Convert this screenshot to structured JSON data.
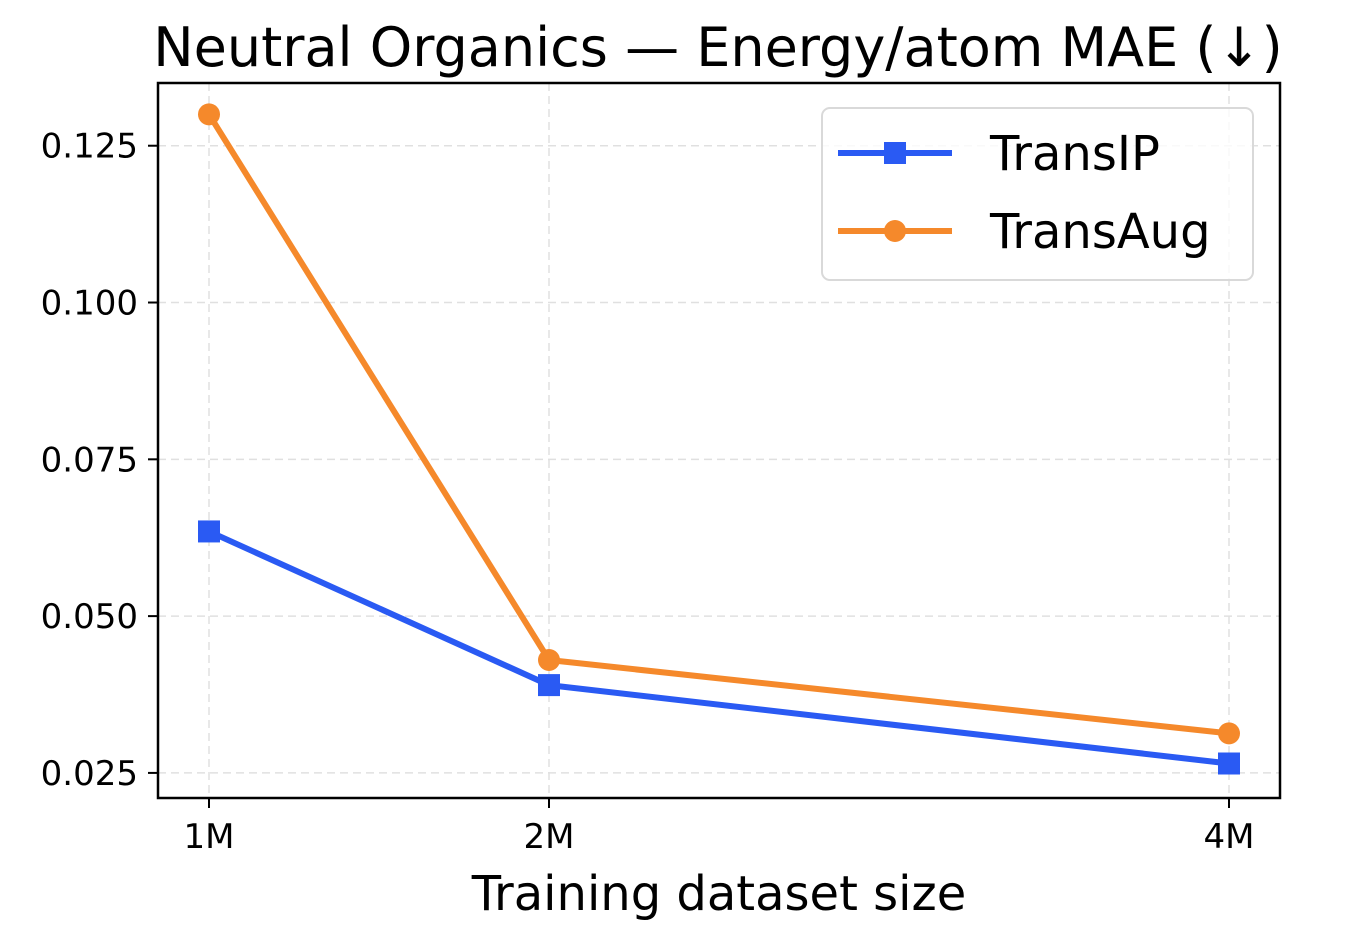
{
  "chart_data": {
    "type": "line",
    "title": "Neutral Organics — Energy/atom MAE (↓)",
    "xlabel": "Training dataset size",
    "ylabel": "",
    "categories": [
      "1M",
      "2M",
      "4M"
    ],
    "x": [
      1,
      2,
      4
    ],
    "ylim": [
      0.021,
      0.135
    ],
    "yticks": [
      0.025,
      0.05,
      0.075,
      0.1,
      0.125
    ],
    "ytick_labels": [
      "0.025",
      "0.050",
      "0.075",
      "0.100",
      "0.125"
    ],
    "grid": true,
    "legend_position": "top-right",
    "series": [
      {
        "name": "TransIP",
        "values": [
          0.0635,
          0.039,
          0.0265
        ],
        "color": "#2a5af3",
        "marker": "square"
      },
      {
        "name": "TransAug",
        "values": [
          0.13,
          0.043,
          0.0313
        ],
        "color": "#f5892b",
        "marker": "circle"
      }
    ]
  }
}
